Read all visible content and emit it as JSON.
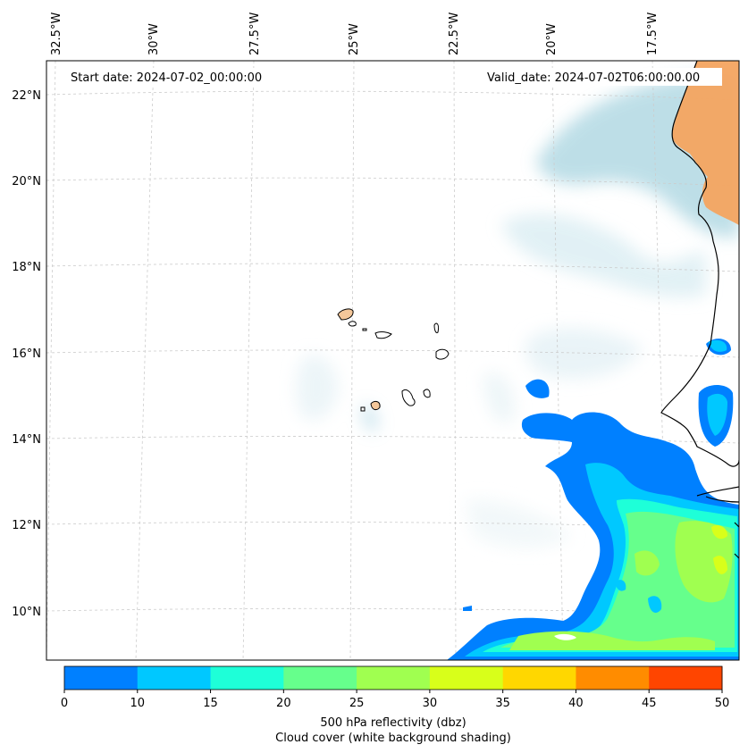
{
  "annotations": {
    "start_date": "Start date: 2024-07-02_00:00:00",
    "valid_date": "Valid_date: 2024-07-02T06:00:00.00"
  },
  "longitude_labels": [
    "32.5°W",
    "30°W",
    "27.5°W",
    "25°W",
    "22.5°W",
    "20°W",
    "17.5°W"
  ],
  "latitude_labels": [
    "22°N",
    "20°N",
    "18°N",
    "16°N",
    "14°N",
    "12°N",
    "10°N"
  ],
  "colorbar": {
    "ticks": [
      "0",
      "10",
      "15",
      "20",
      "25",
      "30",
      "35",
      "40",
      "45",
      "50"
    ],
    "colors": [
      "#0080ff",
      "#00c8ff",
      "#1effd8",
      "#66ff8c",
      "#a0ff50",
      "#d8ff1a",
      "#ffd700",
      "#ff8c00",
      "#ff4500"
    ],
    "label_line1": "500 hPa reflectivity (dbz)",
    "label_line2": "Cloud cover (white background shading)"
  },
  "colors": {
    "land_fill": "#f4a460",
    "cloud_tint": "#a8d4e0",
    "coastline": "#000000",
    "gridline": "#cccccc"
  }
}
